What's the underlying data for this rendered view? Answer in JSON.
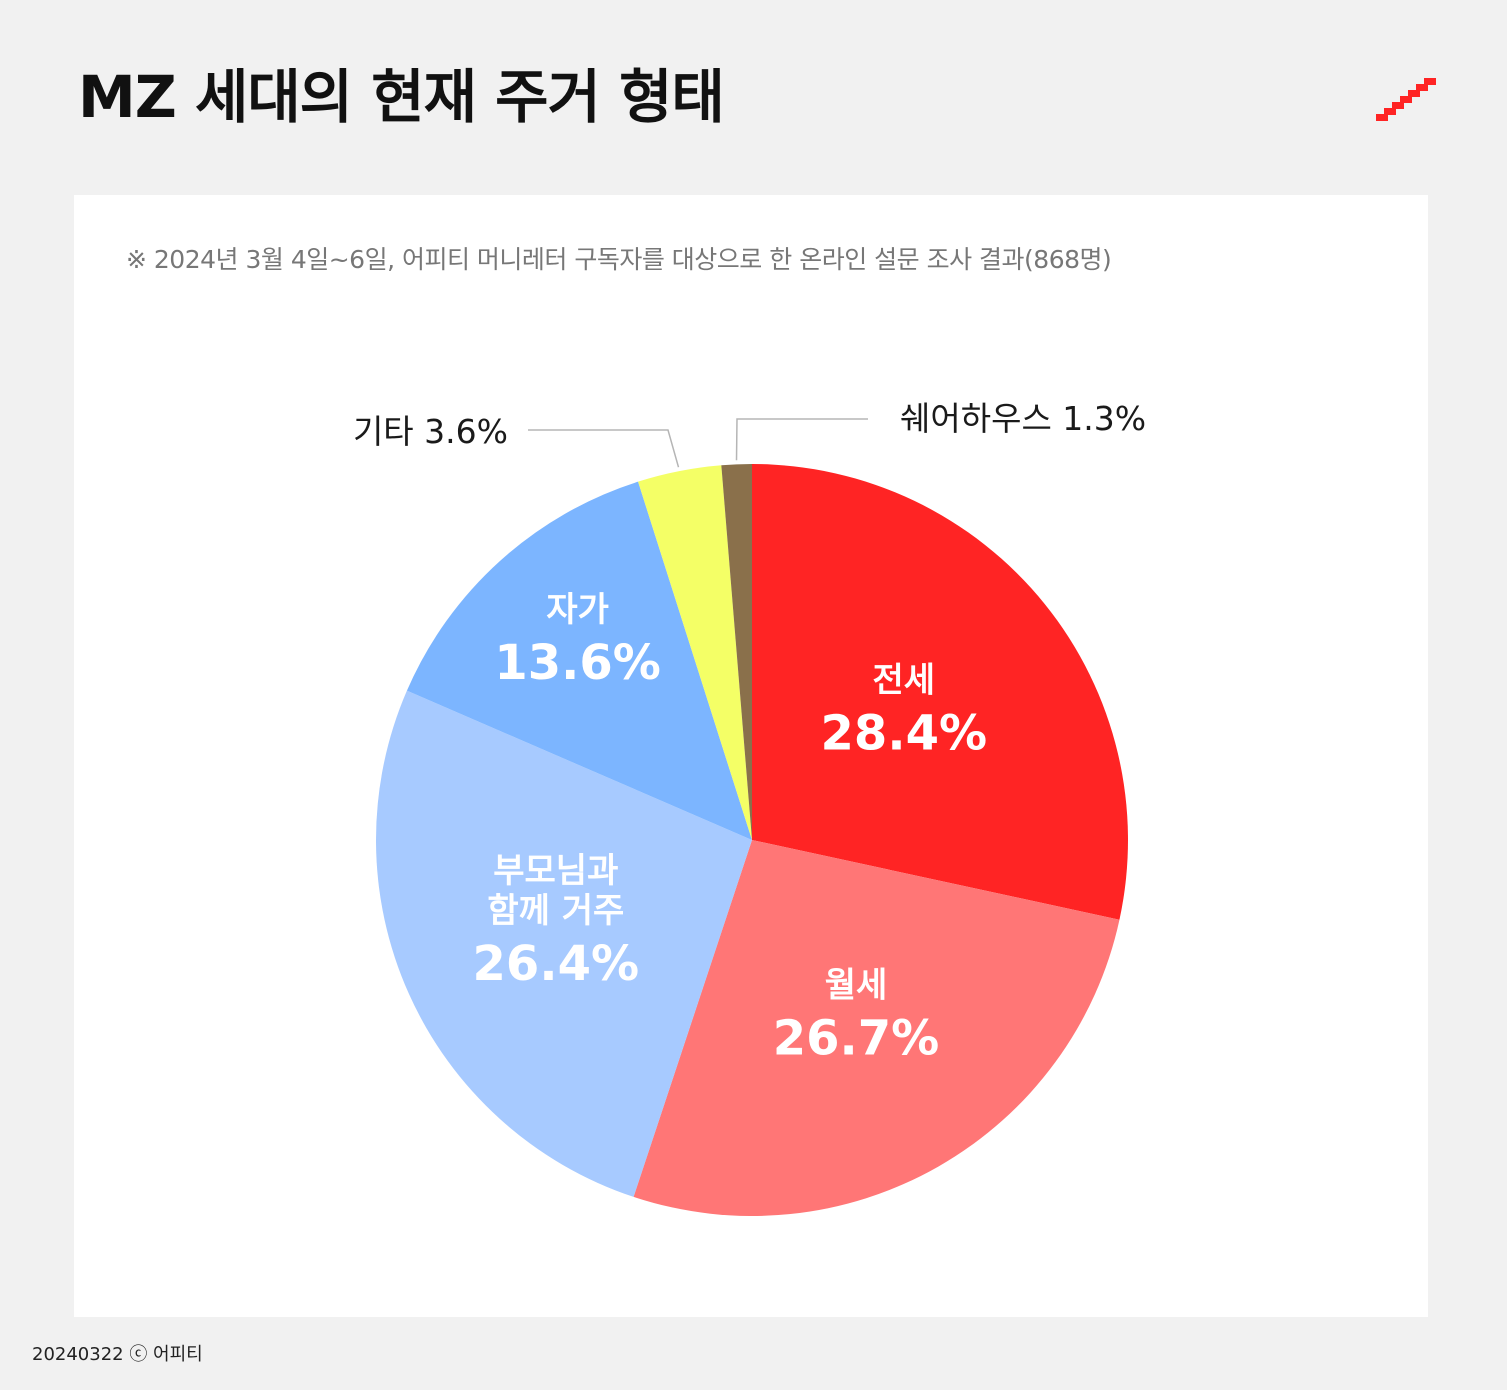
{
  "header": {
    "title": "MZ 세대의 현재 주거 형태"
  },
  "note": "※ 2024년 3월 4일~6일, 어피티 머니레터 구독자를 대상으로 한 온라인 설문 조사 결과(868명)",
  "footer": "20240322 ⓒ 어피티",
  "logo": {
    "icon": "upti-stairs-logo-icon",
    "color": "#ff2424"
  },
  "chart_data": {
    "type": "pie",
    "title": "MZ 세대의 현재 주거 형태",
    "start": "12 o'clock",
    "direction": "clockwise",
    "slices": [
      {
        "name": "전세",
        "value": 28.4,
        "pct_label": "28.4%",
        "color": "#ff2424",
        "label_style": "inside"
      },
      {
        "name": "월세",
        "value": 26.7,
        "pct_label": "26.7%",
        "color": "#ff7676",
        "label_style": "inside"
      },
      {
        "name": "부모님과 함께 거주",
        "name_lines": [
          "부모님과",
          "함께 거주"
        ],
        "value": 26.4,
        "pct_label": "26.4%",
        "color": "#a7caff",
        "label_style": "inside"
      },
      {
        "name": "자가",
        "value": 13.6,
        "pct_label": "13.6%",
        "color": "#7cb5ff",
        "label_style": "inside"
      },
      {
        "name": "기타",
        "value": 3.6,
        "pct_label": "3.6%",
        "color": "#f4ff66",
        "label_style": "callout-left",
        "callout_text": "기타 3.6%"
      },
      {
        "name": "쉐어하우스",
        "value": 1.3,
        "pct_label": "1.3%",
        "color": "#8a704b",
        "label_style": "callout-right",
        "callout_text": "쉐어하우스 1.3%"
      }
    ]
  }
}
